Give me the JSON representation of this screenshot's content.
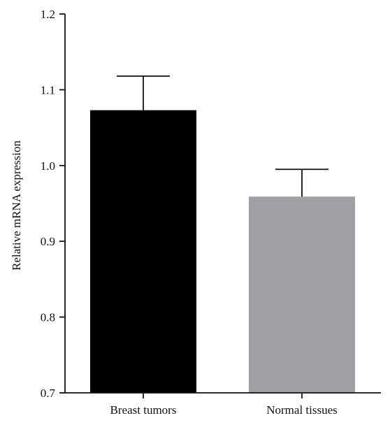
{
  "chart_data": {
    "type": "bar",
    "categories": [
      "Breast tumors",
      "Normal tissues"
    ],
    "values": [
      1.073,
      0.959
    ],
    "error_upper": [
      1.118,
      0.995
    ],
    "colors": [
      "#000000",
      "#a0a0a4"
    ],
    "ylabel": "Relative mRNA expression",
    "xlabel": "",
    "ylim": [
      0.7,
      1.2
    ],
    "yticks": [
      "0.7",
      "0.8",
      "0.9",
      "1.0",
      "1.1",
      "1.2"
    ],
    "grid": false
  }
}
